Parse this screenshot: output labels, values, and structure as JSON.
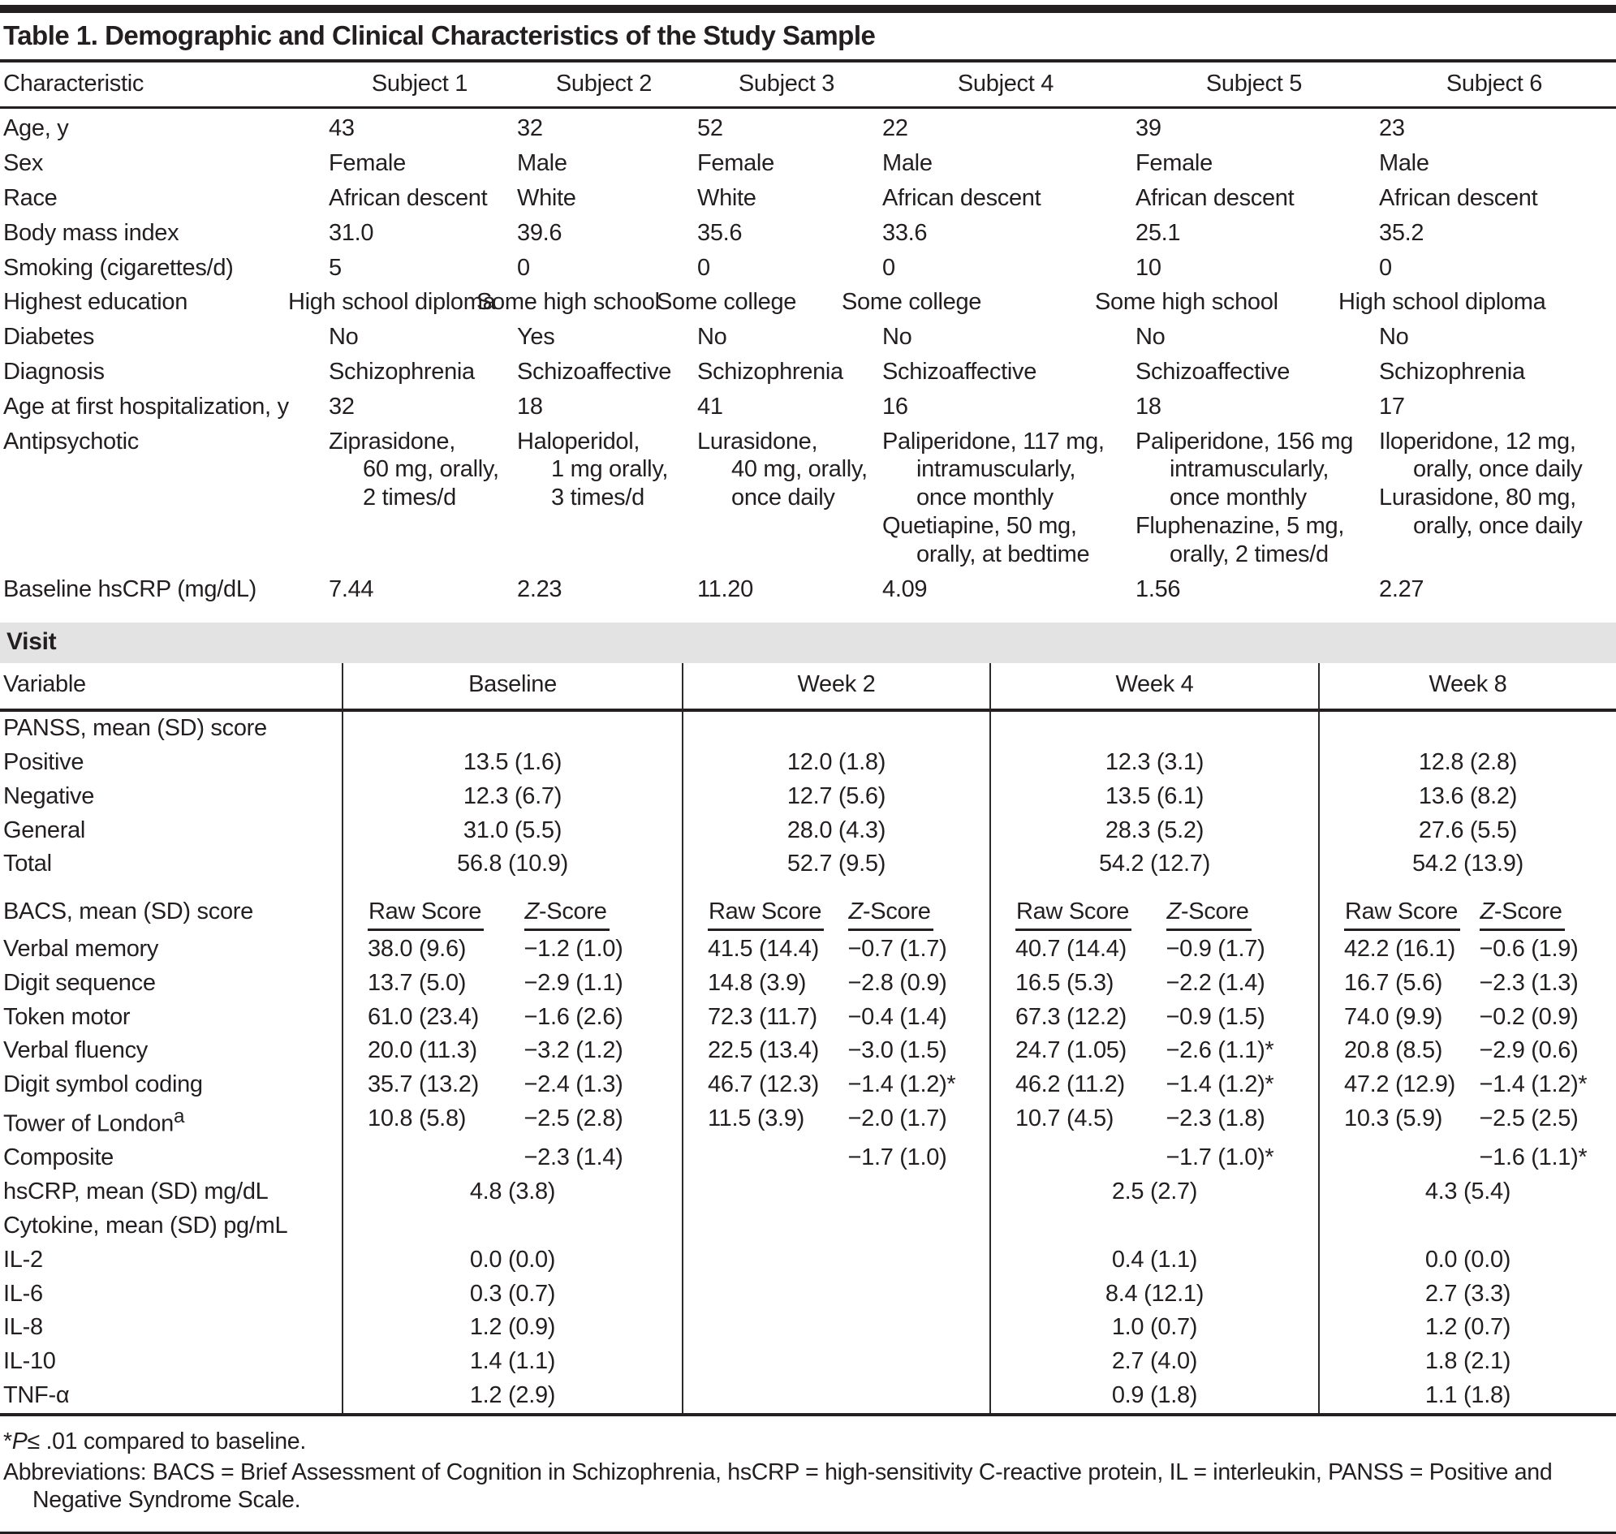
{
  "page": {
    "title": "Table 1. Demographic and Clinical Characteristics of the Study Sample"
  },
  "demographics": {
    "columns": [
      "Characteristic",
      "Subject 1",
      "Subject 2",
      "Subject 3",
      "Subject 4",
      "Subject 5",
      "Subject 6"
    ],
    "rows": [
      {
        "label": "Age, y",
        "values": [
          "43",
          "32",
          "52",
          "22",
          "39",
          "23"
        ]
      },
      {
        "label": "Sex",
        "values": [
          "Female",
          "Male",
          "Female",
          "Male",
          "Female",
          "Male"
        ]
      },
      {
        "label": "Race",
        "values": [
          "African descent",
          "White",
          "White",
          "African descent",
          "African descent",
          "African descent"
        ]
      },
      {
        "label": "Body mass index",
        "values": [
          "31.0",
          "39.6",
          "35.6",
          "33.6",
          "25.1",
          "35.2"
        ]
      },
      {
        "label": "Smoking (cigarettes/d)",
        "values": [
          "5",
          "0",
          "0",
          "0",
          "10",
          "0"
        ]
      },
      {
        "label": "Highest education",
        "values": [
          "High school diploma",
          "Some high school",
          "Some college",
          "Some college",
          "Some high school",
          "High school diploma"
        ]
      },
      {
        "label": "Diabetes",
        "values": [
          "No",
          "Yes",
          "No",
          "No",
          "No",
          "No"
        ]
      },
      {
        "label": "Diagnosis",
        "values": [
          "Schizophrenia",
          "Schizoaffective",
          "Schizophrenia",
          "Schizoaffective",
          "Schizoaffective",
          "Schizophrenia"
        ]
      },
      {
        "label": "Age at first hospitalization, y",
        "values": [
          "32",
          "18",
          "41",
          "16",
          "18",
          "17"
        ]
      }
    ],
    "antipsychotic": {
      "label": "Antipsychotic",
      "subjects": [
        [
          "Ziprasidone,",
          "60 mg, orally,",
          "2 times/d"
        ],
        [
          "Haloperidol,",
          "1 mg orally,",
          "3 times/d"
        ],
        [
          "Lurasidone,",
          "40 mg, orally,",
          "once daily"
        ],
        [
          "Paliperidone, 117 mg,",
          "intramuscularly,",
          "once monthly",
          "Quetiapine, 50 mg,",
          "orally, at bedtime"
        ],
        [
          "Paliperidone, 156 mg",
          "intramuscularly,",
          "once monthly",
          "Fluphenazine, 5 mg,",
          "orally, 2 times/d"
        ],
        [
          "Iloperidone, 12 mg,",
          "orally, once daily",
          "Lurasidone, 80 mg,",
          "orally, once daily"
        ]
      ]
    },
    "baseline_hscrp": {
      "label": "Baseline hsCRP (mg/dL)",
      "values": [
        "7.44",
        "2.23",
        "11.20",
        "4.09",
        "1.56",
        "2.27"
      ]
    }
  },
  "visit": {
    "band_label": "Visit",
    "columns": [
      "Variable",
      "Baseline",
      "Week 2",
      "Week 4",
      "Week 8"
    ],
    "panss": {
      "label": "PANSS, mean (SD) score",
      "rows": [
        {
          "label": "Positive",
          "values": [
            "13.5 (1.6)",
            "12.0 (1.8)",
            "12.3 (3.1)",
            "12.8 (2.8)"
          ]
        },
        {
          "label": "Negative",
          "values": [
            "12.3 (6.7)",
            "12.7 (5.6)",
            "13.5 (6.1)",
            "13.6 (8.2)"
          ]
        },
        {
          "label": "General",
          "values": [
            "31.0 (5.5)",
            "28.0 (4.3)",
            "28.3 (5.2)",
            "27.6 (5.5)"
          ]
        },
        {
          "label": "Total",
          "values": [
            "56.8 (10.9)",
            "52.7 (9.5)",
            "54.2 (12.7)",
            "54.2 (13.9)"
          ]
        }
      ]
    },
    "bacs": {
      "label": "BACS, mean (SD) score",
      "raw_header": "Raw Score",
      "z_header_italic": "Z",
      "z_header_rest": "-Score",
      "rows": [
        {
          "label": "Verbal memory",
          "raw": [
            "38.0 (9.6)",
            "41.5 (14.4)",
            "40.7 (14.4)",
            "42.2 (16.1)"
          ],
          "z": [
            "−1.2 (1.0)",
            "−0.7 (1.7)",
            "−0.9 (1.7)",
            "−0.6 (1.9)"
          ]
        },
        {
          "label": "Digit sequence",
          "raw": [
            "13.7 (5.0)",
            "14.8 (3.9)",
            "16.5 (5.3)",
            "16.7 (5.6)"
          ],
          "z": [
            "−2.9 (1.1)",
            "−2.8 (0.9)",
            "−2.2 (1.4)",
            "−2.3 (1.3)"
          ]
        },
        {
          "label": "Token motor",
          "raw": [
            "61.0 (23.4)",
            "72.3 (11.7)",
            "67.3 (12.2)",
            "74.0 (9.9)"
          ],
          "z": [
            "−1.6 (2.6)",
            "−0.4 (1.4)",
            "−0.9 (1.5)",
            "−0.2 (0.9)"
          ]
        },
        {
          "label": "Verbal fluency",
          "raw": [
            "20.0 (11.3)",
            "22.5 (13.4)",
            "24.7 (1.05)",
            "20.8 (8.5)"
          ],
          "z": [
            "−3.2 (1.2)",
            "−3.0 (1.5)",
            "−2.6 (1.1)*",
            "−2.9 (0.6)"
          ]
        },
        {
          "label": "Digit symbol coding",
          "raw": [
            "35.7 (13.2)",
            "46.7 (12.3)",
            "46.2 (11.2)",
            "47.2 (12.9)"
          ],
          "z": [
            "−2.4 (1.3)",
            "−1.4 (1.2)*",
            "−1.4 (1.2)*",
            "−1.4 (1.2)*"
          ]
        },
        {
          "label": "Tower of London",
          "label_sup": "a",
          "raw": [
            "10.8 (5.8)",
            "11.5 (3.9)",
            "10.7 (4.5)",
            "10.3 (5.9)"
          ],
          "z": [
            "−2.5 (2.8)",
            "−2.0 (1.7)",
            "−2.3 (1.8)",
            "−2.5 (2.5)"
          ]
        }
      ],
      "composite": {
        "label": "Composite",
        "z": [
          "−2.3 (1.4)",
          "−1.7 (1.0)",
          "−1.7 (1.0)*",
          "−1.6 (1.1)*"
        ]
      }
    },
    "hscrp": {
      "label": "hsCRP, mean (SD) mg/dL",
      "values": [
        "4.8 (3.8)",
        "",
        "2.5 (2.7)",
        "4.3 (5.4)"
      ]
    },
    "cytokine": {
      "label": "Cytokine, mean (SD) pg/mL",
      "rows": [
        {
          "label": "IL-2",
          "values": [
            "0.0 (0.0)",
            "",
            "0.4 (1.1)",
            "0.0 (0.0)"
          ]
        },
        {
          "label": "IL-6",
          "values": [
            "0.3 (0.7)",
            "",
            "8.4 (12.1)",
            "2.7 (3.3)"
          ]
        },
        {
          "label": "IL-8",
          "values": [
            "1.2 (0.9)",
            "",
            "1.0 (0.7)",
            "1.2 (0.7)"
          ]
        },
        {
          "label": "IL-10",
          "values": [
            "1.4 (1.1)",
            "",
            "2.7 (4.0)",
            "1.8 (2.1)"
          ]
        },
        {
          "label": "TNF-α",
          "values": [
            "1.2 (2.9)",
            "",
            "0.9 (1.8)",
            "1.1 (1.8)"
          ]
        }
      ]
    }
  },
  "footnotes": {
    "sig_star": "*",
    "sig_p": "P",
    "sig_rest": "≤ .01 compared to baseline.",
    "abbreviations": "Abbreviations: BACS = Brief Assessment of Cognition in Schizophrenia, hsCRP = high-sensitivity C-reactive protein, IL = interleukin, PANSS = Positive and Negative Syndrome Scale."
  }
}
